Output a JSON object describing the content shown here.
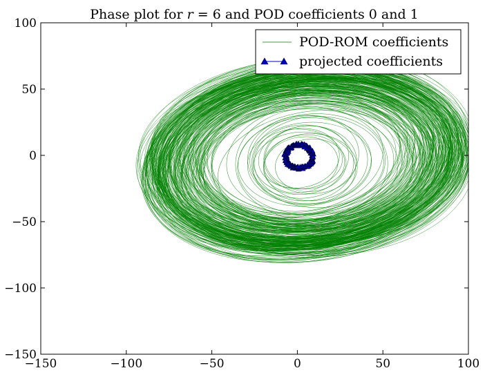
{
  "chart_data": {
    "type": "line",
    "title": "Phase plot for r = 6 and POD coefficients 0 and 1",
    "title_parts": {
      "prefix": "Phase plot for ",
      "r": "r",
      "eq": " = ",
      "r_value": "6",
      "mid": " and POD coefficients ",
      "c0": "0",
      "and": " and ",
      "c1": "1"
    },
    "xlabel": "",
    "ylabel": "",
    "xlim": [
      -150,
      100
    ],
    "ylim": [
      -150,
      100
    ],
    "xticks": [
      -150,
      -100,
      -50,
      0,
      50,
      100
    ],
    "yticks": [
      -150,
      -100,
      -50,
      0,
      50,
      100
    ],
    "xtick_labels": [
      "−150",
      "−100",
      "−50",
      "0",
      "50",
      "100"
    ],
    "ytick_labels": [
      "−150",
      "−100",
      "−50",
      "0",
      "50",
      "100"
    ],
    "grid": false,
    "legend": {
      "position": "top-right",
      "entries": [
        "POD-ROM coefficients",
        "projected coefficients"
      ]
    },
    "series": [
      {
        "name": "POD-ROM coefficients",
        "color": "#008000",
        "marker": "none",
        "description_shape": "dense tilted elliptical orbits",
        "center": [
          5,
          -5
        ],
        "x_extent": [
          -103,
          88
        ],
        "y_extent": [
          -108,
          83
        ],
        "inner_hole_radius": [
          15,
          18
        ]
      },
      {
        "name": "projected coefficients",
        "color": "#0000bf",
        "edge_color": "#000033",
        "marker": "triangle",
        "center": [
          1,
          -1
        ],
        "x_extent": [
          -8,
          9
        ],
        "y_extent": [
          -10,
          9
        ]
      }
    ]
  }
}
